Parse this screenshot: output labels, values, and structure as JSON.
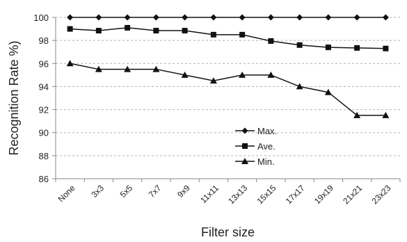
{
  "chart_data": {
    "type": "line",
    "title": "",
    "xlabel": "Filter size",
    "ylabel": "Recognition Rate %)",
    "categories": [
      "None",
      "3x3",
      "5x5",
      "7x7",
      "9x9",
      "11x11",
      "13x13",
      "15x15",
      "17x17",
      "19x19",
      "21x21",
      "23x23"
    ],
    "ylim": [
      86,
      100
    ],
    "yticks": [
      86,
      88,
      90,
      92,
      94,
      96,
      98,
      100
    ],
    "grid": "horizontal dashed",
    "legend_position": "lower-right",
    "series": [
      {
        "name": "Max.",
        "marker": "diamond",
        "values": [
          100,
          100,
          100,
          100,
          100,
          100,
          100,
          100,
          100,
          100,
          100,
          100
        ]
      },
      {
        "name": "Ave.",
        "marker": "square",
        "values": [
          99.0,
          98.85,
          99.1,
          98.85,
          98.85,
          98.5,
          98.5,
          97.95,
          97.6,
          97.4,
          97.35,
          97.3
        ]
      },
      {
        "name": "Min.",
        "marker": "triangle",
        "values": [
          96.0,
          95.5,
          95.5,
          95.5,
          95.0,
          94.5,
          95.0,
          95.0,
          94.0,
          93.5,
          91.5,
          91.5
        ]
      }
    ],
    "colors": {
      "line": "#111111",
      "grid": "#b0b0b0",
      "axis": "#888888"
    }
  }
}
